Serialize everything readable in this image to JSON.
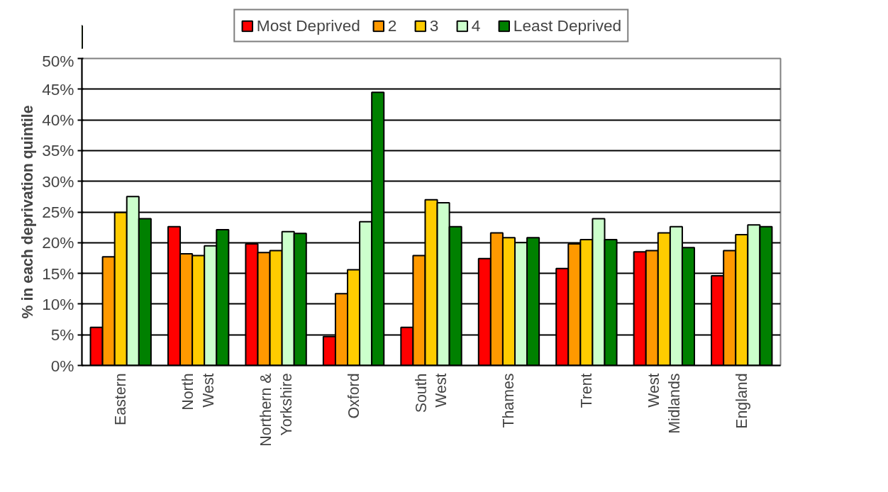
{
  "chart_data": {
    "type": "bar",
    "ylabel": "% in each deprivation quintile",
    "categories": [
      "Eastern",
      "North West",
      "Northern & Yorkshire",
      "Oxford",
      "South West",
      "Thames",
      "Trent",
      "West Midlands",
      "England"
    ],
    "series": [
      {
        "name": "Most Deprived",
        "color": "#ff0000",
        "values": [
          6.2,
          22.6,
          19.8,
          4.7,
          6.2,
          17.4,
          15.8,
          18.5,
          14.6
        ]
      },
      {
        "name": "2",
        "color": "#ff9900",
        "values": [
          17.7,
          18.2,
          18.4,
          11.7,
          17.9,
          21.6,
          19.8,
          18.7,
          18.7
        ]
      },
      {
        "name": "3",
        "color": "#ffcc00",
        "values": [
          24.9,
          17.9,
          18.7,
          15.6,
          27.0,
          20.8,
          20.5,
          21.6,
          21.3
        ]
      },
      {
        "name": "4",
        "color": "#ccffcc",
        "values": [
          27.5,
          19.5,
          21.8,
          23.4,
          26.5,
          20.0,
          23.9,
          22.6,
          22.9
        ]
      },
      {
        "name": "Least Deprived",
        "color": "#008000",
        "values": [
          23.9,
          22.1,
          21.5,
          44.5,
          22.6,
          20.8,
          20.5,
          19.2,
          22.6
        ]
      }
    ],
    "ylim": [
      0,
      50
    ],
    "yticks": [
      {
        "value": 0,
        "label": "0%"
      },
      {
        "value": 5,
        "label": "5%"
      },
      {
        "value": 10,
        "label": "10%"
      },
      {
        "value": 15,
        "label": "15%"
      },
      {
        "value": 20,
        "label": "20%"
      },
      {
        "value": 25,
        "label": "25%"
      },
      {
        "value": 30,
        "label": "30%"
      },
      {
        "value": 35,
        "label": "35%"
      },
      {
        "value": 40,
        "label": "40%"
      },
      {
        "value": 45,
        "label": "45%"
      },
      {
        "value": 50,
        "label": "50%"
      }
    ],
    "grid": "y",
    "legend": "top"
  }
}
